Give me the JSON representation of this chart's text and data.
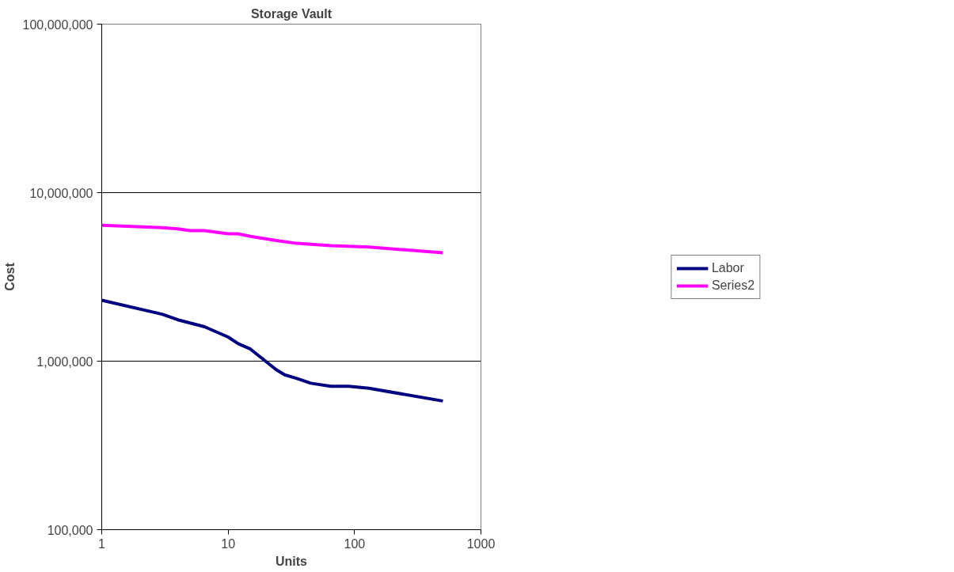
{
  "chart_data": {
    "type": "line",
    "title": "Storage Vault",
    "xlabel": "Units",
    "ylabel": "Cost",
    "log": "xy",
    "xlim": [
      1,
      1000
    ],
    "xticks": [
      1,
      10,
      100,
      1000
    ],
    "ylim": [
      100000,
      100000000
    ],
    "yticks": [
      {
        "value": 100000,
        "label": "100,000"
      },
      {
        "value": 1000000,
        "label": "1,000,000"
      },
      {
        "value": 10000000,
        "label": "10,000,000"
      },
      {
        "value": 100000000,
        "label": "100,000,000"
      }
    ],
    "grid": "y",
    "legend": "right",
    "marker": "none",
    "line_style": "solid",
    "series": [
      {
        "name": "Labor",
        "color": "#000080",
        "x": [
          1,
          3,
          4,
          6.5,
          10,
          12,
          15,
          24,
          28,
          35,
          45,
          65,
          90,
          130,
          500
        ],
        "values": [
          2300000,
          1900000,
          1760000,
          1600000,
          1390000,
          1270000,
          1180000,
          890000,
          830000,
          790000,
          740000,
          710000,
          710000,
          690000,
          580000
        ]
      },
      {
        "name": "Series2",
        "color": "#ff00ff",
        "x": [
          1,
          3,
          4,
          5,
          6.5,
          10,
          12,
          15,
          24,
          35,
          65,
          130,
          500
        ],
        "values": [
          6400000,
          6200000,
          6100000,
          5950000,
          5950000,
          5700000,
          5700000,
          5500000,
          5200000,
          5000000,
          4850000,
          4750000,
          4400000
        ]
      }
    ]
  }
}
